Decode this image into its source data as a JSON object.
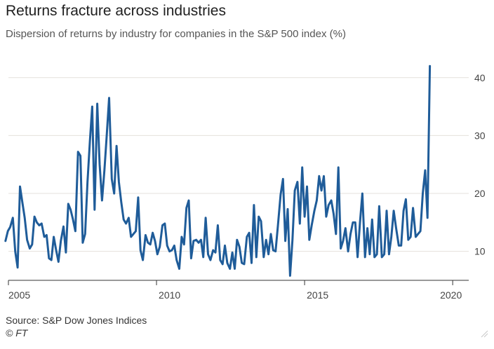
{
  "chart_data": {
    "type": "line",
    "title": "Returns fracture across industries",
    "subtitle": "Dispersion of returns by industry for companies in the S&P 500 index (%)",
    "xlabel": "",
    "ylabel": "",
    "xlim": [
      2005,
      2020.4
    ],
    "ylim": [
      5,
      43
    ],
    "x_ticks": [
      2005,
      2010,
      2015,
      2020
    ],
    "x_tick_labels": [
      "2005",
      "2010",
      "2015",
      "2020"
    ],
    "y_ticks": [
      10,
      20,
      30,
      40
    ],
    "y_tick_labels": [
      "10",
      "20",
      "30",
      "40"
    ],
    "y_axis_position": "right",
    "grid": "horizontal",
    "line_color": "#1f5c99",
    "gridline_color": "#e4e1dc",
    "legend": "none",
    "points": [
      [
        2004.9,
        11.8
      ],
      [
        2004.98,
        13.5
      ],
      [
        2005.06,
        14.2
      ],
      [
        2005.15,
        15.8
      ],
      [
        2005.23,
        10.0
      ],
      [
        2005.31,
        7.2
      ],
      [
        2005.39,
        21.2
      ],
      [
        2005.47,
        18.5
      ],
      [
        2005.55,
        15.8
      ],
      [
        2005.63,
        12.0
      ],
      [
        2005.72,
        10.5
      ],
      [
        2005.8,
        11.2
      ],
      [
        2005.88,
        16.0
      ],
      [
        2005.96,
        15.0
      ],
      [
        2006.04,
        14.5
      ],
      [
        2006.12,
        14.8
      ],
      [
        2006.21,
        12.5
      ],
      [
        2006.29,
        12.8
      ],
      [
        2006.37,
        8.8
      ],
      [
        2006.45,
        8.5
      ],
      [
        2006.53,
        12.5
      ],
      [
        2006.61,
        10.2
      ],
      [
        2006.69,
        8.2
      ],
      [
        2006.77,
        11.8
      ],
      [
        2006.86,
        14.3
      ],
      [
        2006.94,
        9.8
      ],
      [
        2007.02,
        18.2
      ],
      [
        2007.1,
        17.2
      ],
      [
        2007.18,
        15.5
      ],
      [
        2007.26,
        13.5
      ],
      [
        2007.35,
        27.2
      ],
      [
        2007.43,
        26.5
      ],
      [
        2007.51,
        11.5
      ],
      [
        2007.59,
        13.0
      ],
      [
        2007.67,
        22.0
      ],
      [
        2007.75,
        29.0
      ],
      [
        2007.83,
        35.0
      ],
      [
        2007.91,
        17.2
      ],
      [
        2008.0,
        35.5
      ],
      [
        2008.08,
        25.0
      ],
      [
        2008.16,
        18.8
      ],
      [
        2008.24,
        24.0
      ],
      [
        2008.32,
        30.0
      ],
      [
        2008.4,
        36.5
      ],
      [
        2008.49,
        22.5
      ],
      [
        2008.57,
        20.0
      ],
      [
        2008.65,
        28.2
      ],
      [
        2008.73,
        22.0
      ],
      [
        2008.81,
        18.5
      ],
      [
        2008.89,
        15.5
      ],
      [
        2008.97,
        14.8
      ],
      [
        2009.06,
        15.8
      ],
      [
        2009.14,
        12.5
      ],
      [
        2009.22,
        13.0
      ],
      [
        2009.3,
        13.5
      ],
      [
        2009.38,
        19.3
      ],
      [
        2009.46,
        10.2
      ],
      [
        2009.54,
        8.5
      ],
      [
        2009.63,
        12.8
      ],
      [
        2009.71,
        11.5
      ],
      [
        2009.79,
        11.2
      ],
      [
        2009.87,
        13.2
      ],
      [
        2009.95,
        11.8
      ],
      [
        2010.03,
        9.5
      ],
      [
        2010.11,
        10.8
      ],
      [
        2010.2,
        14.5
      ],
      [
        2010.28,
        14.8
      ],
      [
        2010.36,
        11.0
      ],
      [
        2010.44,
        10.0
      ],
      [
        2010.52,
        10.2
      ],
      [
        2010.6,
        11.0
      ],
      [
        2010.68,
        8.5
      ],
      [
        2010.77,
        7.0
      ],
      [
        2010.85,
        12.5
      ],
      [
        2010.93,
        11.2
      ],
      [
        2011.01,
        17.5
      ],
      [
        2011.09,
        18.8
      ],
      [
        2011.17,
        8.8
      ],
      [
        2011.25,
        11.8
      ],
      [
        2011.34,
        12.0
      ],
      [
        2011.42,
        11.5
      ],
      [
        2011.5,
        12.0
      ],
      [
        2011.58,
        9.0
      ],
      [
        2011.66,
        15.8
      ],
      [
        2011.74,
        9.5
      ],
      [
        2011.82,
        8.5
      ],
      [
        2011.91,
        10.2
      ],
      [
        2011.99,
        9.8
      ],
      [
        2012.07,
        14.5
      ],
      [
        2012.15,
        8.5
      ],
      [
        2012.23,
        7.8
      ],
      [
        2012.31,
        11.0
      ],
      [
        2012.39,
        8.0
      ],
      [
        2012.48,
        7.0
      ],
      [
        2012.56,
        9.8
      ],
      [
        2012.64,
        7.0
      ],
      [
        2012.72,
        12.0
      ],
      [
        2012.8,
        10.8
      ],
      [
        2012.88,
        8.0
      ],
      [
        2012.96,
        7.8
      ],
      [
        2013.05,
        12.5
      ],
      [
        2013.13,
        13.2
      ],
      [
        2013.21,
        8.0
      ],
      [
        2013.29,
        18.0
      ],
      [
        2013.37,
        9.0
      ],
      [
        2013.45,
        16.0
      ],
      [
        2013.53,
        15.2
      ],
      [
        2013.62,
        9.0
      ],
      [
        2013.7,
        12.0
      ],
      [
        2013.78,
        9.5
      ],
      [
        2013.86,
        13.0
      ],
      [
        2013.94,
        10.2
      ],
      [
        2014.02,
        10.0
      ],
      [
        2014.1,
        14.5
      ],
      [
        2014.19,
        19.8
      ],
      [
        2014.27,
        22.5
      ],
      [
        2014.35,
        11.8
      ],
      [
        2014.43,
        17.3
      ],
      [
        2014.51,
        5.8
      ],
      [
        2014.59,
        12.0
      ],
      [
        2014.67,
        20.5
      ],
      [
        2014.76,
        22.0
      ],
      [
        2014.84,
        14.8
      ],
      [
        2014.92,
        24.5
      ],
      [
        2015.0,
        16.0
      ],
      [
        2015.08,
        21.2
      ],
      [
        2015.16,
        12.0
      ],
      [
        2015.24,
        14.5
      ],
      [
        2015.33,
        17.0
      ],
      [
        2015.41,
        18.8
      ],
      [
        2015.49,
        23.0
      ],
      [
        2015.57,
        20.5
      ],
      [
        2015.65,
        23.0
      ],
      [
        2015.73,
        16.0
      ],
      [
        2015.81,
        18.0
      ],
      [
        2015.9,
        18.8
      ],
      [
        2015.98,
        16.5
      ],
      [
        2016.06,
        13.0
      ],
      [
        2016.14,
        24.5
      ],
      [
        2016.22,
        10.5
      ],
      [
        2016.3,
        11.8
      ],
      [
        2016.38,
        14.0
      ],
      [
        2016.47,
        10.0
      ],
      [
        2016.55,
        13.0
      ],
      [
        2016.63,
        15.0
      ],
      [
        2016.71,
        15.0
      ],
      [
        2016.79,
        9.0
      ],
      [
        2016.87,
        15.0
      ],
      [
        2016.95,
        20.0
      ],
      [
        2017.04,
        9.0
      ],
      [
        2017.12,
        14.0
      ],
      [
        2017.2,
        9.5
      ],
      [
        2017.28,
        15.5
      ],
      [
        2017.36,
        9.0
      ],
      [
        2017.44,
        9.5
      ],
      [
        2017.52,
        17.8
      ],
      [
        2017.61,
        9.0
      ],
      [
        2017.69,
        9.5
      ],
      [
        2017.77,
        17.0
      ],
      [
        2017.85,
        9.5
      ],
      [
        2017.93,
        12.5
      ],
      [
        2018.01,
        17.0
      ],
      [
        2018.09,
        14.0
      ],
      [
        2018.18,
        11.0
      ],
      [
        2018.26,
        11.0
      ],
      [
        2018.34,
        17.0
      ],
      [
        2018.42,
        19.0
      ],
      [
        2018.5,
        12.0
      ],
      [
        2018.58,
        12.5
      ],
      [
        2018.66,
        17.5
      ],
      [
        2018.75,
        12.5
      ],
      [
        2018.83,
        13.0
      ],
      [
        2018.91,
        13.5
      ],
      [
        2018.99,
        20.0
      ],
      [
        2019.07,
        24.0
      ],
      [
        2019.15,
        15.8
      ],
      [
        2019.23,
        42.0
      ]
    ]
  },
  "source": "Source: S&P Dow Jones Indices",
  "credit": "© FT"
}
